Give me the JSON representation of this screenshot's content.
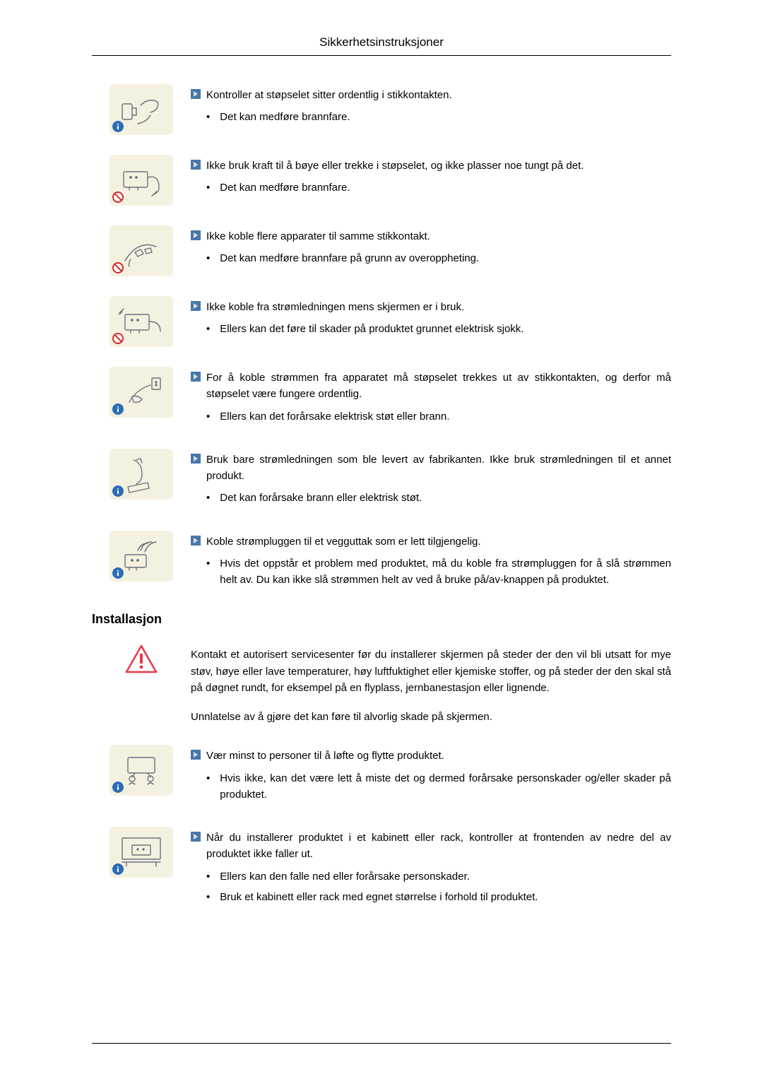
{
  "header": {
    "title": "Sikkerhetsinstruksjoner"
  },
  "colors": {
    "icon_bg": "#f5f1e0",
    "icon_stroke": "#6b7280",
    "info_badge": "#2a6fb5",
    "prohibit": "#d62828",
    "bullet": "#4578a8",
    "text": "#000000",
    "warn_border": "#e63946",
    "warn_fill": "#ffffff"
  },
  "instructions": [
    {
      "icon": "plug-check",
      "badge": "info",
      "lead": "Kontroller at støpselet sitter ordentlig i stikkontakten.",
      "subs": [
        "Det kan medføre brannfare."
      ]
    },
    {
      "icon": "plug-bend",
      "badge": "prohibit",
      "lead": "Ikke bruk kraft til å bøye eller trekke i støpselet, og ikke plasser noe tungt på det.",
      "subs": [
        "Det kan medføre brannfare."
      ]
    },
    {
      "icon": "multi-plug",
      "badge": "prohibit",
      "lead": "Ikke koble flere apparater til samme stikkontakt.",
      "subs": [
        "Det kan medføre brannfare på grunn av overoppheting."
      ]
    },
    {
      "icon": "disconnect-on",
      "badge": "prohibit",
      "lead": "Ikke koble fra strømledningen mens skjermen er i bruk.",
      "subs": [
        "Ellers kan det føre til skader på produktet grunnet elektrisk sjokk."
      ]
    },
    {
      "icon": "unplug-wall",
      "badge": "info",
      "lead": "For å koble strømmen fra apparatet må støpselet trekkes ut av stikkontakten, og derfor må støpselet være fungere ordentlig.",
      "subs": [
        "Ellers kan det forårsake elektrisk støt eller brann."
      ]
    },
    {
      "icon": "oem-cable",
      "badge": "info",
      "lead": "Bruk bare strømledningen som ble levert av fabrikanten. Ikke bruk strømledningen til et annet produkt.",
      "subs": [
        "Det kan forårsake brann eller elektrisk støt."
      ]
    },
    {
      "icon": "wall-outlet",
      "badge": "info",
      "lead": "Koble strømpluggen til et vegguttak som er lett tilgjengelig.",
      "subs": [
        "Hvis det oppstår et problem med produktet, må du koble fra strømpluggen for å slå strømmen helt av. Du kan ikke slå strømmen helt av ved å bruke på/av-knappen på produktet."
      ]
    }
  ],
  "installation": {
    "title": "Installasjon",
    "warning": {
      "icon": "triangle-warn",
      "paragraphs": [
        "Kontakt et autorisert servicesenter før du installerer skjermen på steder der den vil bli utsatt for mye støv, høye eller lave temperaturer, høy luftfuktighet eller kjemiske stoffer, og på steder der den skal stå på døgnet rundt, for eksempel på en flyplass, jernbanestasjon eller lignende.",
        "Unnlatelse av å gjøre det kan føre til alvorlig skade på skjermen."
      ]
    },
    "items": [
      {
        "icon": "two-people",
        "badge": "info",
        "lead": "Vær minst to personer til å løfte og flytte produktet.",
        "subs": [
          "Hvis ikke, kan det være lett å miste det og dermed forårsake personskader og/eller skader på produktet."
        ]
      },
      {
        "icon": "cabinet",
        "badge": "info",
        "lead": "Når du installerer produktet i et kabinett eller rack, kontroller at frontenden av nedre del av produktet ikke faller ut.",
        "subs": [
          "Ellers kan den falle ned eller forårsake personskader.",
          "Bruk et kabinett eller rack med egnet størrelse i forhold til produktet."
        ]
      }
    ]
  }
}
